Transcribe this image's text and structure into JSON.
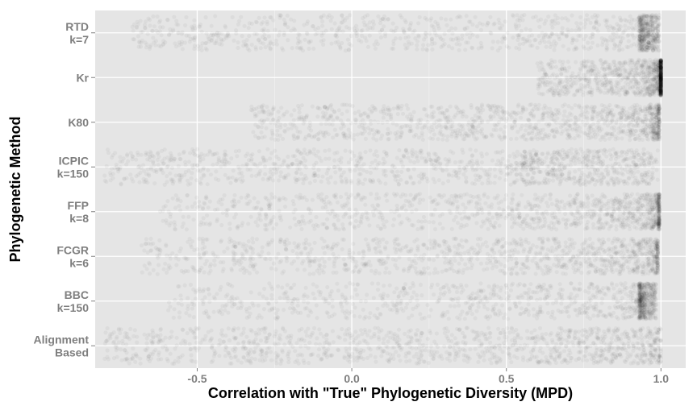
{
  "chart_data": {
    "type": "scatter",
    "title": "",
    "xlabel": "Correlation with \"True\" Phylogenetic Diversity (MPD)",
    "ylabel": "Phylogenetic Method",
    "xlim": [
      -0.83,
      1.08
    ],
    "x_ticks": [
      -0.5,
      0.0,
      0.5,
      1.0
    ],
    "x_tick_labels": [
      "-0.5",
      "0.0",
      "0.5",
      "1.0"
    ],
    "grid": true,
    "legend": "none",
    "categories": [
      {
        "id": "rtd",
        "lines": [
          "RTD",
          "k=7"
        ],
        "min": -0.72,
        "max": 0.995,
        "mode": 0.93,
        "concentration": 1.4
      },
      {
        "id": "kr",
        "lines": [
          "Kr"
        ],
        "min": 0.6,
        "max": 1.0,
        "mode": 0.99,
        "concentration": 7.0
      },
      {
        "id": "k80",
        "lines": [
          "K80"
        ],
        "min": -0.33,
        "max": 0.995,
        "mode": 0.95,
        "concentration": 2.2
      },
      {
        "id": "icpic",
        "lines": [
          "ICPIC",
          "k=150"
        ],
        "min": -0.8,
        "max": 0.99,
        "mode": 0.55,
        "concentration": 1.1
      },
      {
        "id": "ffp",
        "lines": [
          "FFP",
          "k=8"
        ],
        "min": -0.62,
        "max": 0.995,
        "mode": 0.96,
        "concentration": 3.2
      },
      {
        "id": "fcgr",
        "lines": [
          "FCGR",
          "k=6"
        ],
        "min": -0.68,
        "max": 0.99,
        "mode": 0.95,
        "concentration": 2.4
      },
      {
        "id": "bbc",
        "lines": [
          "BBC",
          "k=150"
        ],
        "min": -0.6,
        "max": 0.985,
        "mode": 0.93,
        "concentration": 1.8
      },
      {
        "id": "alignment",
        "lines": [
          "Alignment",
          "Based"
        ],
        "min": -0.8,
        "max": 1.0,
        "mode": 0.96,
        "concentration": 1.6
      }
    ],
    "points_per_category": 1200,
    "colors": {
      "panel_background": "#e5e5e5",
      "grid": "#ffffff",
      "point": "#000000",
      "tick_label": "#7f7f7f"
    }
  }
}
